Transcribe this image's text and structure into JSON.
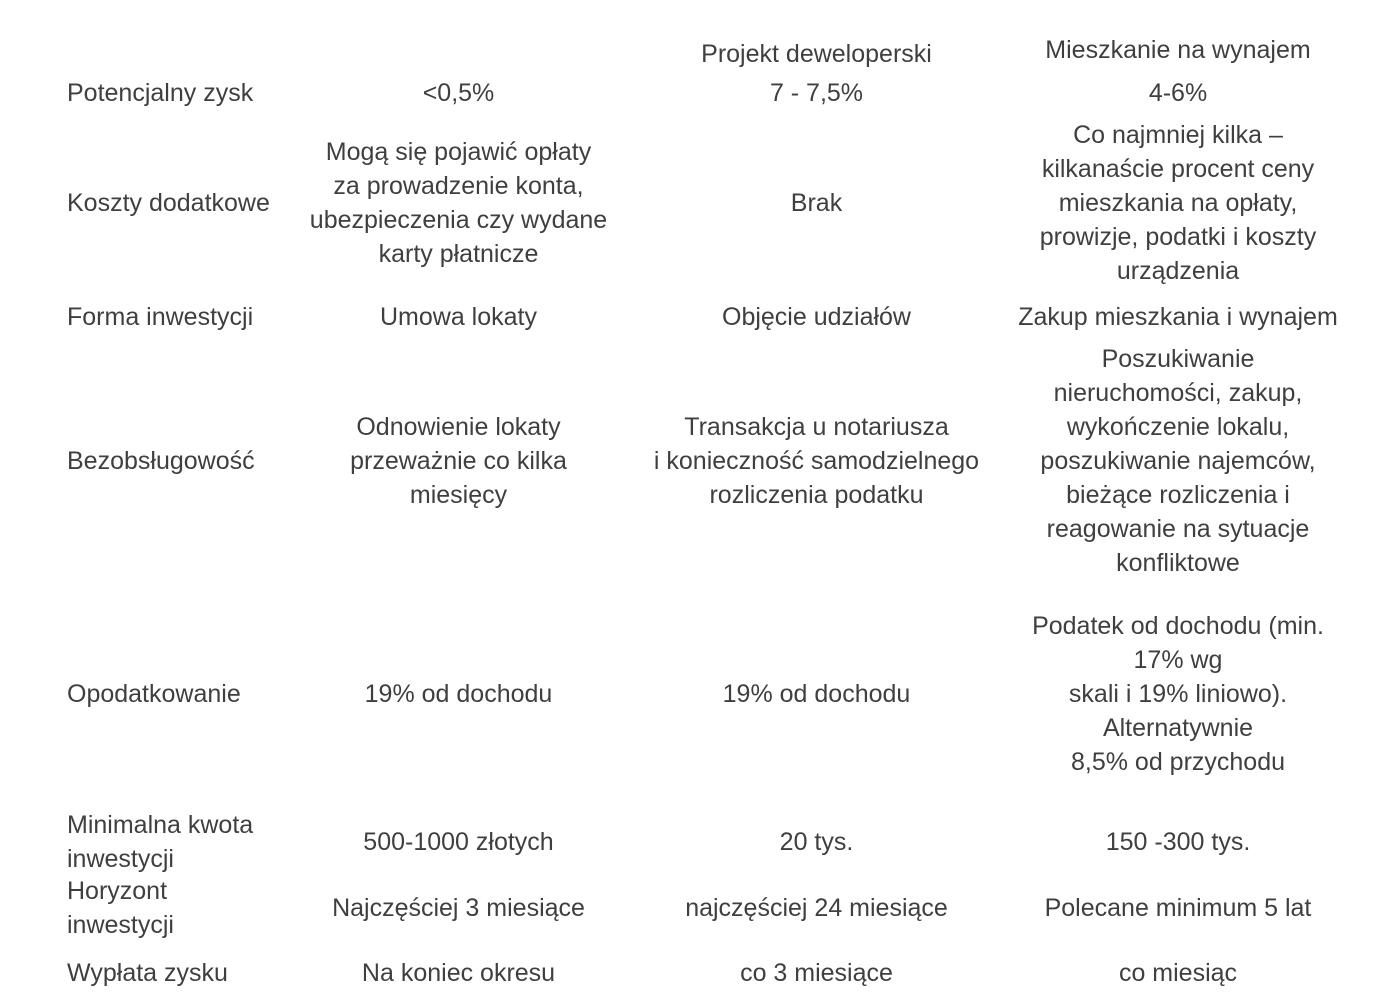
{
  "style": {
    "background_color": "#ffffff",
    "text_color": "#3f3f3f"
  },
  "chart_data": {
    "type": "table",
    "columns": [
      {
        "header": ""
      },
      {
        "header": ""
      },
      {
        "header": "Projekt deweloperski"
      },
      {
        "header": "Mieszkanie na wynajem"
      }
    ],
    "rows": [
      {
        "label": "Potencjalny zysk",
        "cells": [
          "<0,5%",
          "7 - 7,5%",
          "4-6%"
        ]
      },
      {
        "label": "Koszty dodatkowe",
        "cells": [
          "Mogą się pojawić opłaty\nza prowadzenie konta,\nubezpieczenia czy wydane\nkarty płatnicze",
          "Brak",
          "Co najmniej kilka –\nkilkanaście procent ceny\nmieszkania na opłaty,\nprowizje, podatki i koszty\nurządzenia"
        ]
      },
      {
        "label": "Forma inwestycji",
        "cells": [
          "Umowa lokaty",
          "Objęcie udziałów",
          "Zakup mieszkania i wynajem"
        ]
      },
      {
        "label": "Bezobsługowość",
        "cells": [
          "Odnowienie lokaty\nprzeważnie co kilka\nmiesięcy",
          "Transakcja u notariusza\ni konieczność samodzielnego\nrozliczenia podatku",
          "Poszukiwanie\nnieruchomości, zakup,\nwykończenie lokalu,\nposzukiwanie najemców,\nbieżące rozliczenia i\nreagowanie na sytuacje\nkonfliktowe"
        ]
      },
      {
        "label": "Opodatkowanie",
        "cells": [
          "19% od dochodu",
          "19% od dochodu",
          "Podatek od dochodu (min.\n17% wg\nskali i 19% liniowo).\nAlternatywnie\n8,5% od przychodu"
        ]
      },
      {
        "label": "Minimalna kwota\ninwestycji",
        "cells": [
          "500-1000 złotych",
          "20 tys.",
          "150 -300 tys."
        ]
      },
      {
        "label": "Horyzont\ninwestycji",
        "cells": [
          "Najczęściej 3 miesiące",
          "najczęściej 24 miesiące",
          "Polecane minimum 5 lat"
        ]
      },
      {
        "label": "Wypłata zysku",
        "cells": [
          "Na koniec okresu",
          "co 3 miesiące",
          "co miesiąc"
        ]
      }
    ]
  }
}
